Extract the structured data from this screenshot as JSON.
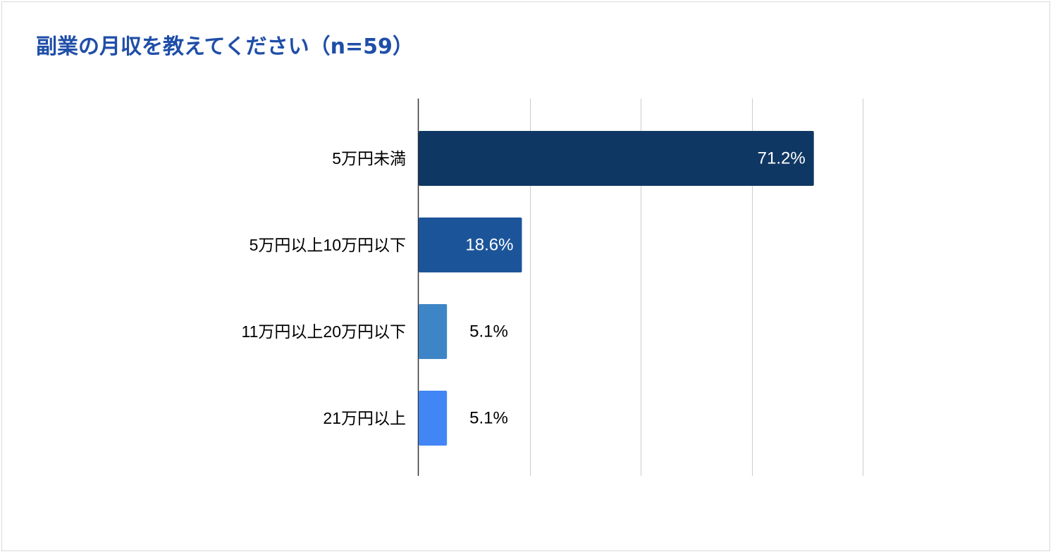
{
  "chart_data": {
    "type": "bar",
    "orientation": "horizontal",
    "title": "副業の月収を教えてください（n=59）",
    "categories": [
      "5万円未満",
      "5万円以上10万円以下",
      "11万円以上20万円以下",
      "21万円以上"
    ],
    "values": [
      71.2,
      18.6,
      5.1,
      5.1
    ],
    "value_labels": [
      "71.2%",
      "18.6%",
      "5.1%",
      "5.1%"
    ],
    "bar_colors": [
      "#0f3763",
      "#1c5499",
      "#3d85c6",
      "#4285f4"
    ],
    "xlim": [
      0,
      80
    ],
    "grid_step": 20,
    "grid": true,
    "legend": "none",
    "xlabel": "",
    "ylabel": ""
  },
  "colors": {
    "title": "#1f4ea8",
    "gridline": "#cccccc",
    "axis": "#333333",
    "label_inside": "#ffffff",
    "label_outside": "#000000"
  }
}
